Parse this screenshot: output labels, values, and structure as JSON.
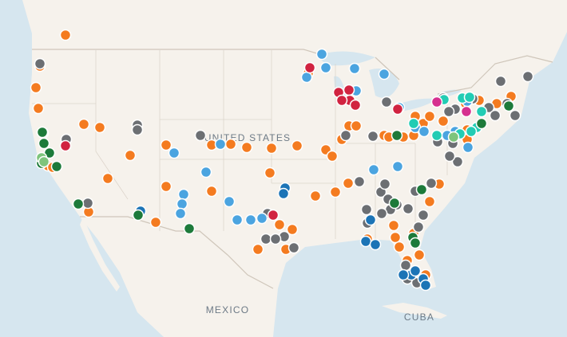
{
  "labels": {
    "country": "UNITED STATES",
    "south": "MEXICO",
    "island": "CUBA"
  }
}
